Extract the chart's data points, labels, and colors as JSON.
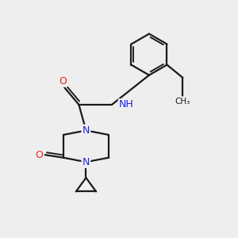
{
  "bg_color": "#eeeeee",
  "bond_color": "#1a1a1a",
  "N_color": "#2020ee",
  "O_color": "#ee2020",
  "NH_color": "#2020ee",
  "Et_color": "#3a8a3a",
  "lw": 1.6,
  "fs": 9.0,
  "figsize": [
    3.0,
    3.0
  ],
  "dpi": 100,
  "xlim": [
    -0.5,
    7.0
  ],
  "ylim": [
    -2.8,
    5.5
  ]
}
